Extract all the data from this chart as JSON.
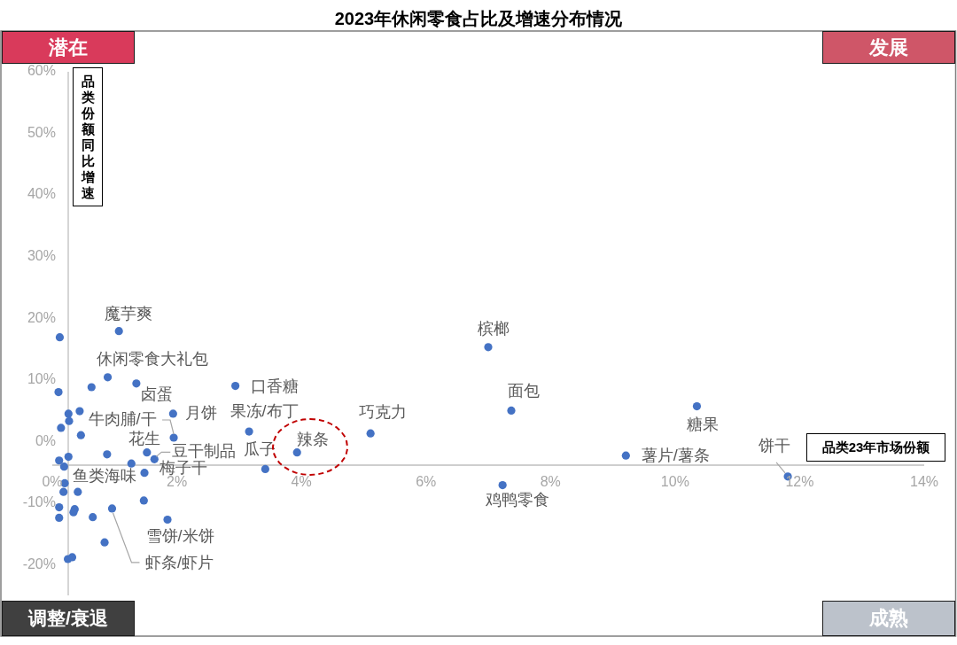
{
  "chart_data": {
    "type": "scatter",
    "title": "2023年休闲零食占比及增速分布情况",
    "xlabel": "品类23年市场份额",
    "ylabel": "品类份额同比增速",
    "x": [
      1.07,
      0.89,
      1.35,
      2.94,
      1.94,
      3.16,
      1.95,
      1.52,
      1.64,
      3.42,
      3.93,
      5.11,
      7,
      7.37,
      7.23,
      10.35,
      9.21,
      11.81,
      1.27,
      1.48,
      1.85,
      0.96,
      0.12,
      0.63,
      0.1,
      0.26,
      0.44,
      0.27,
      0.14,
      0.46,
      0.88,
      0.26,
      0.11,
      0.19,
      0.2,
      0.18,
      0.41,
      1.47,
      0.11,
      0.11,
      0.36,
      0.34,
      0.65,
      0.84,
      0.25,
      0.32
    ],
    "values": [
      17.9,
      10.4,
      9.4,
      9,
      4.5,
      1.6,
      0.6,
      -1.8,
      -2.9,
      -4.5,
      -1.8,
      1.3,
      15.3,
      5,
      -7.1,
      5.7,
      -2.3,
      -5.7,
      -3.6,
      -5.1,
      -12.7,
      -10.9,
      16.9,
      8.8,
      8,
      4.5,
      4.9,
      3.3,
      2.2,
      1,
      -2.1,
      -2.5,
      -3.1,
      -4.1,
      -6.8,
      -8.2,
      -8.2,
      -9.6,
      -10.7,
      -12.4,
      -11,
      -11.5,
      -12.3,
      -16.4,
      -19.1,
      -18.8
    ],
    "color": "#4472c4",
    "marker": "circle",
    "xlim": [
      0,
      14
    ],
    "xticks": [
      {
        "value": 0,
        "label": "0%"
      },
      {
        "value": 2,
        "label": "2%"
      },
      {
        "value": 4,
        "label": "4%"
      },
      {
        "value": 6,
        "label": "6%"
      },
      {
        "value": 8,
        "label": "8%"
      },
      {
        "value": 10,
        "label": "10%"
      },
      {
        "value": 12,
        "label": "12%"
      },
      {
        "value": 14,
        "label": "14%"
      }
    ],
    "ylim": [
      -25,
      60
    ],
    "yticks": [
      {
        "value": -20,
        "label": "-20%"
      },
      {
        "value": -10,
        "label": "-10%"
      },
      {
        "value": 0,
        "label": "0%"
      },
      {
        "value": 10,
        "label": "10%"
      },
      {
        "value": 20,
        "label": "20%"
      },
      {
        "value": 30,
        "label": "30%"
      },
      {
        "value": 40,
        "label": "40%"
      },
      {
        "value": 50,
        "label": "50%"
      },
      {
        "value": 60,
        "label": "60%"
      }
    ],
    "annotations": [
      "潜在",
      "发展",
      "调整/衰退",
      "成熟",
      {
        "text": "魔芋爽",
        "x": 1.07,
        "y": 17.9
      },
      {
        "text": "休闲零食大礼包",
        "x": 0.89,
        "y": 10.4
      },
      {
        "text": "卤蛋",
        "x": 1.35,
        "y": 9.4
      },
      {
        "text": "口香糖",
        "x": 2.94,
        "y": 9
      },
      {
        "text": "月饼",
        "x": 1.94,
        "y": 4.5
      },
      {
        "text": "果冻/布丁",
        "x": 3.16,
        "y": 1.6
      },
      {
        "text": "牛肉脯/干",
        "x": 1.95,
        "y": 0.6
      },
      {
        "text": "花生",
        "x": 1.52,
        "y": -1.8
      },
      {
        "text": "豆干制品",
        "x": 1.64,
        "y": -2.9
      },
      {
        "text": "瓜子",
        "x": 3.42,
        "y": -4.5
      },
      {
        "text": "辣条",
        "x": 3.93,
        "y": -1.8
      },
      {
        "text": "巧克力",
        "x": 5.11,
        "y": 1.3
      },
      {
        "text": "槟榔",
        "x": 7,
        "y": 15.3
      },
      {
        "text": "面包",
        "x": 7.37,
        "y": 5
      },
      {
        "text": "鸡鸭零食",
        "x": 7.23,
        "y": -7.1
      },
      {
        "text": "糖果",
        "x": 10.35,
        "y": 5.7
      },
      {
        "text": "薯片/薯条",
        "x": 9.21,
        "y": -2.3
      },
      {
        "text": "饼干",
        "x": 11.81,
        "y": -5.7
      },
      {
        "text": "鱼类海味",
        "x": 1.27,
        "y": -3.6
      },
      {
        "text": "梅子干",
        "x": 1.48,
        "y": -5.1
      },
      {
        "text": "雪饼/米饼",
        "x": 1.85,
        "y": -12.7
      },
      {
        "text": "虾条/虾片",
        "x": 0.96,
        "y": -10.9
      }
    ]
  }
}
